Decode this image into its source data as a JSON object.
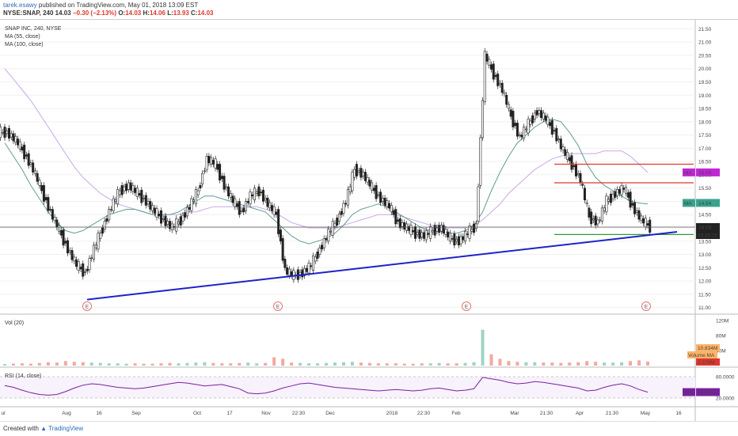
{
  "header": {
    "author": "tarek.esawy",
    "published": "published on TradingView.com, May 01, 2018 13:09 EST",
    "symbol": "NYSE:SNAP, 240",
    "o_label": "O:",
    "o_value": "14.03",
    "h_label": "H:",
    "h_value": "14.06",
    "l_label": "L:",
    "l_value": "13.93",
    "c_label": "C:",
    "c_value": "14.03",
    "last": "14.03",
    "change": "−0.30 (−2.13%)"
  },
  "legend": {
    "title": "SNAP INC, 240, NYSE",
    "ma55": "MA (55, close)",
    "ma100": "MA (100, close)",
    "vol": "Vol (20)",
    "rsi": "RSI (14, close)"
  },
  "colors": {
    "up": "#4a4a4a",
    "down": "#222222",
    "ma55": "#5f9e8f",
    "ma100": "#c9a8e8",
    "trendline": "#1e22c8",
    "resistance": "#e0362d",
    "support": "#2e9c3a",
    "rsi": "#7b1fa2",
    "vol_up": "#9fd4c4",
    "vol_down": "#f2a9a2"
  },
  "badges": {
    "ma_label": "MA",
    "ma_high": "16.09",
    "ma_low": "14.94",
    "price": "14.03",
    "countdown": "03:20:20",
    "vol_ma_label": "Volume MA",
    "vol_ma_value": "2.378M",
    "vol_value": "10.834M",
    "rsi_label": "RSI",
    "rsi_value": "36.5529"
  },
  "earnings_marker": "E",
  "chart_data": {
    "type": "line",
    "price_axis": [
      "21.50",
      "21.00",
      "20.50",
      "20.00",
      "19.50",
      "19.00",
      "18.50",
      "18.00",
      "17.50",
      "17.00",
      "16.50",
      "16.00",
      "15.50",
      "15.00",
      "14.50",
      "14.00",
      "13.50",
      "13.00",
      "12.50",
      "12.00",
      "11.50",
      "11.00"
    ],
    "ylim": [
      10.9,
      21.75
    ],
    "volume_axis": [
      "120M",
      "80M",
      "40M"
    ],
    "rsi_axis": [
      "80.0000",
      "20.0000"
    ],
    "x_labels": [
      "ul",
      "Aug",
      "16",
      "Sep",
      "Oct",
      "17",
      "Nov",
      "22:30",
      "Dec",
      "2018",
      "22:30",
      "Feb",
      "Mar",
      "21:30",
      "Apr",
      "21:30",
      "May",
      "16"
    ],
    "series": [
      {
        "values": [
          17.6,
          17.3,
          16.8,
          16.2,
          15.4,
          14.6,
          13.9,
          13.2,
          12.6,
          12.3,
          13.2,
          14.0,
          14.8,
          15.4,
          15.6,
          15.3,
          15.0,
          14.6,
          14.3,
          14.0,
          14.3,
          14.8,
          15.4,
          16.6,
          16.4,
          15.6,
          15.0,
          14.6,
          15.2,
          15.4,
          14.9,
          14.5,
          12.4,
          12.2,
          12.3,
          12.6,
          13.2,
          13.8,
          14.3,
          15.0,
          16.2,
          16.0,
          15.5,
          15.1,
          14.8,
          14.2,
          14.0,
          13.8,
          13.7,
          13.9,
          14.0,
          13.6,
          13.5,
          13.8,
          14.1,
          20.5,
          19.8,
          19.2,
          18.2,
          17.4,
          17.9,
          18.4,
          18.1,
          17.6,
          16.9,
          16.4,
          15.8,
          14.4,
          14.2,
          15.0,
          15.3,
          15.5,
          14.8,
          14.3,
          14.03
        ]
      },
      {
        "name": "MA (55, close)",
        "values": [
          17.2,
          16.7,
          16.2,
          15.6,
          15.1,
          14.6,
          14.2,
          13.9,
          13.8,
          13.9,
          14.1,
          14.3,
          14.5,
          14.6,
          14.7,
          14.7,
          14.6,
          14.5,
          14.5,
          14.5,
          14.6,
          14.8,
          15.0,
          15.2,
          15.2,
          15.1,
          15.0,
          14.9,
          14.8,
          14.7,
          14.6,
          14.3,
          14.0,
          13.7,
          13.5,
          13.4,
          13.5,
          13.6,
          13.8,
          14.1,
          14.5,
          14.7,
          14.8,
          14.9,
          14.8,
          14.6,
          14.4,
          14.2,
          14.0,
          13.9,
          13.9,
          13.8,
          13.8,
          13.9,
          14.1,
          14.6,
          15.4,
          16.1,
          16.7,
          17.2,
          17.5,
          17.8,
          18.0,
          18.1,
          18.0,
          17.6,
          17.1,
          16.4,
          15.9,
          15.6,
          15.4,
          15.2,
          15.0,
          14.94,
          14.9
        ]
      },
      {
        "name": "MA (100, close)",
        "values": [
          20.0,
          19.6,
          19.2,
          18.8,
          18.3,
          17.8,
          17.3,
          16.8,
          16.3,
          15.9,
          15.6,
          15.3,
          15.1,
          14.9,
          14.8,
          14.7,
          14.6,
          14.5,
          14.5,
          14.5,
          14.5,
          14.6,
          14.6,
          14.7,
          14.8,
          14.8,
          14.8,
          14.8,
          14.8,
          14.8,
          14.7,
          14.6,
          14.4,
          14.2,
          14.1,
          14.0,
          14.0,
          14.0,
          14.0,
          14.1,
          14.2,
          14.3,
          14.4,
          14.5,
          14.5,
          14.5,
          14.4,
          14.3,
          14.2,
          14.1,
          14.1,
          14.0,
          14.0,
          14.0,
          14.1,
          14.3,
          14.6,
          14.9,
          15.3,
          15.6,
          15.9,
          16.2,
          16.4,
          16.6,
          16.7,
          16.8,
          16.8,
          16.8,
          16.8,
          16.9,
          16.9,
          16.9,
          16.7,
          16.4,
          16.09
        ]
      }
    ],
    "trendline": {
      "from": 11.3,
      "to": 13.85
    },
    "resistance_levels": [
      16.4,
      15.7
    ],
    "support_level": 13.75,
    "rsi_values": [
      55,
      50,
      42,
      35,
      30,
      28,
      30,
      38,
      48,
      56,
      60,
      58,
      54,
      50,
      48,
      46,
      48,
      52,
      56,
      60,
      64,
      62,
      58,
      54,
      56,
      58,
      52,
      46,
      34,
      32,
      34,
      40,
      48,
      54,
      60,
      62,
      58,
      54,
      50,
      48,
      46,
      44,
      42,
      40,
      42,
      44,
      42,
      40,
      42,
      46,
      48,
      44,
      40,
      42,
      46,
      78,
      74,
      70,
      64,
      60,
      62,
      66,
      64,
      60,
      56,
      52,
      48,
      40,
      42,
      50,
      56,
      60,
      54,
      44,
      36.5529
    ],
    "volume_values": [
      4,
      5,
      6,
      5,
      7,
      9,
      8,
      12,
      10,
      9,
      8,
      7,
      6,
      6,
      5,
      6,
      5,
      5,
      6,
      7,
      6,
      7,
      8,
      9,
      7,
      6,
      6,
      7,
      8,
      6,
      7,
      22,
      18,
      8,
      7,
      6,
      6,
      7,
      8,
      9,
      10,
      8,
      7,
      6,
      6,
      6,
      5,
      5,
      6,
      6,
      7,
      6,
      6,
      7,
      9,
      95,
      30,
      18,
      12,
      10,
      9,
      9,
      8,
      8,
      7,
      8,
      9,
      12,
      10,
      8,
      8,
      9,
      12,
      14,
      10.834
    ]
  }
}
